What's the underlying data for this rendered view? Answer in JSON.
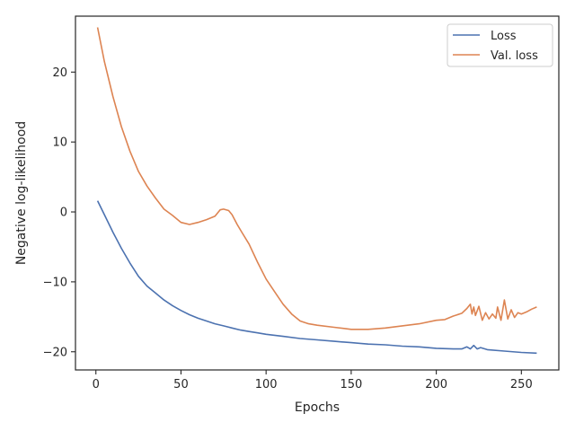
{
  "chart_data": {
    "type": "line",
    "title": "",
    "xlabel": "Epochs",
    "ylabel": "Negative log-likelihood",
    "xlim": [
      -12,
      272
    ],
    "ylim": [
      -22.6,
      28.0
    ],
    "xticks": [
      0,
      50,
      100,
      150,
      200,
      250
    ],
    "xtick_labels": [
      "0",
      "50",
      "100",
      "150",
      "200",
      "250"
    ],
    "yticks": [
      -20,
      -10,
      0,
      10,
      20
    ],
    "ytick_labels": [
      "−20",
      "−10",
      "0",
      "10",
      "20"
    ],
    "grid": false,
    "legend_position": "top-right",
    "series": [
      {
        "name": "Loss",
        "color": "#4c72b0",
        "points": [
          [
            1,
            1.6
          ],
          [
            5,
            -0.4
          ],
          [
            10,
            -2.9
          ],
          [
            15,
            -5.2
          ],
          [
            20,
            -7.3
          ],
          [
            25,
            -9.2
          ],
          [
            30,
            -10.6
          ],
          [
            35,
            -11.6
          ],
          [
            40,
            -12.6
          ],
          [
            45,
            -13.4
          ],
          [
            50,
            -14.1
          ],
          [
            55,
            -14.7
          ],
          [
            60,
            -15.2
          ],
          [
            65,
            -15.6
          ],
          [
            70,
            -16.0
          ],
          [
            75,
            -16.3
          ],
          [
            80,
            -16.6
          ],
          [
            85,
            -16.9
          ],
          [
            90,
            -17.1
          ],
          [
            95,
            -17.3
          ],
          [
            100,
            -17.5
          ],
          [
            110,
            -17.8
          ],
          [
            120,
            -18.1
          ],
          [
            130,
            -18.3
          ],
          [
            140,
            -18.5
          ],
          [
            150,
            -18.7
          ],
          [
            160,
            -18.9
          ],
          [
            170,
            -19.0
          ],
          [
            180,
            -19.2
          ],
          [
            190,
            -19.3
          ],
          [
            200,
            -19.5
          ],
          [
            210,
            -19.6
          ],
          [
            215,
            -19.6
          ],
          [
            218,
            -19.3
          ],
          [
            220,
            -19.6
          ],
          [
            222,
            -19.1
          ],
          [
            224,
            -19.6
          ],
          [
            226,
            -19.4
          ],
          [
            230,
            -19.7
          ],
          [
            240,
            -19.9
          ],
          [
            250,
            -20.1
          ],
          [
            259,
            -20.2
          ]
        ]
      },
      {
        "name": "Val. loss",
        "color": "#dd8452",
        "points": [
          [
            1,
            26.4
          ],
          [
            5,
            21.5
          ],
          [
            10,
            16.5
          ],
          [
            15,
            12.2
          ],
          [
            20,
            8.7
          ],
          [
            25,
            5.8
          ],
          [
            30,
            3.7
          ],
          [
            35,
            2.0
          ],
          [
            40,
            0.4
          ],
          [
            45,
            -0.5
          ],
          [
            50,
            -1.5
          ],
          [
            55,
            -1.8
          ],
          [
            60,
            -1.5
          ],
          [
            65,
            -1.1
          ],
          [
            70,
            -0.6
          ],
          [
            73,
            0.3
          ],
          [
            75,
            0.4
          ],
          [
            78,
            0.2
          ],
          [
            80,
            -0.4
          ],
          [
            83,
            -1.8
          ],
          [
            86,
            -3.0
          ],
          [
            90,
            -4.6
          ],
          [
            95,
            -7.2
          ],
          [
            100,
            -9.6
          ],
          [
            105,
            -11.4
          ],
          [
            110,
            -13.2
          ],
          [
            115,
            -14.6
          ],
          [
            120,
            -15.6
          ],
          [
            125,
            -16.0
          ],
          [
            130,
            -16.2
          ],
          [
            140,
            -16.5
          ],
          [
            150,
            -16.8
          ],
          [
            160,
            -16.8
          ],
          [
            170,
            -16.6
          ],
          [
            180,
            -16.3
          ],
          [
            190,
            -16.0
          ],
          [
            200,
            -15.5
          ],
          [
            205,
            -15.4
          ],
          [
            210,
            -14.9
          ],
          [
            215,
            -14.5
          ],
          [
            218,
            -13.8
          ],
          [
            220,
            -13.2
          ],
          [
            221,
            -14.6
          ],
          [
            222,
            -13.6
          ],
          [
            223,
            -14.8
          ],
          [
            225,
            -13.5
          ],
          [
            227,
            -15.5
          ],
          [
            229,
            -14.4
          ],
          [
            231,
            -15.3
          ],
          [
            233,
            -14.6
          ],
          [
            235,
            -15.2
          ],
          [
            236,
            -13.6
          ],
          [
            238,
            -15.5
          ],
          [
            240,
            -12.6
          ],
          [
            242,
            -15.3
          ],
          [
            244,
            -14.0
          ],
          [
            246,
            -15.1
          ],
          [
            248,
            -14.4
          ],
          [
            250,
            -14.6
          ],
          [
            253,
            -14.3
          ],
          [
            256,
            -13.9
          ],
          [
            259,
            -13.6
          ]
        ]
      }
    ]
  }
}
